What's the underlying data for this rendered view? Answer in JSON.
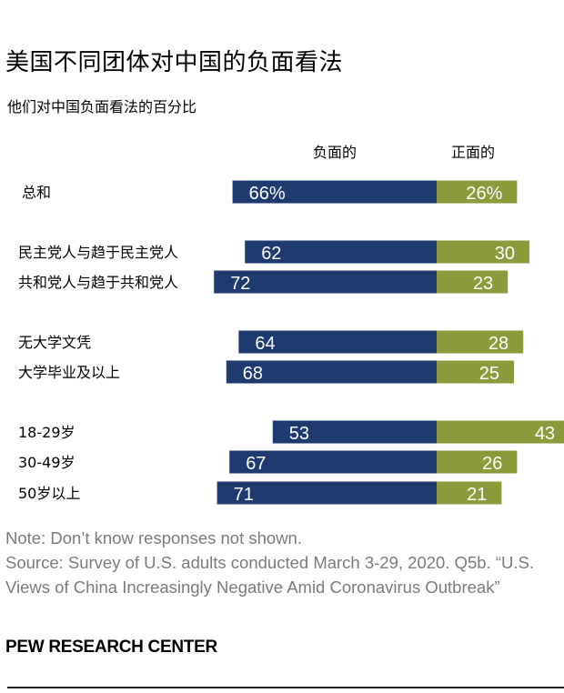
{
  "title": "美国不同团体对中国的负面看法",
  "subtitle": "他们对中国负面看法的百分比",
  "chart_data": {
    "type": "bar",
    "orientation": "horizontal-diverging",
    "series": [
      {
        "name": "负面的",
        "color": "#1f3a6e",
        "values": [
          66,
          62,
          72,
          64,
          68,
          53,
          67,
          71
        ]
      },
      {
        "name": "正面的",
        "color": "#8d9a3b",
        "values": [
          26,
          30,
          23,
          28,
          25,
          43,
          26,
          21
        ]
      }
    ],
    "categories": [
      "总和",
      "民主党人与趋于民主党人",
      "共和党人与趋于共和党人",
      "无大学文凭",
      "大学毕业及以上",
      "18-29岁",
      "30-49岁",
      "50岁以上"
    ],
    "value_labels": {
      "negative": [
        "66%",
        "62",
        "72",
        "64",
        "68",
        "53",
        "67",
        "71"
      ],
      "positive": [
        "26%",
        "30",
        "23",
        "28",
        "25",
        "43",
        "26",
        "21"
      ]
    },
    "title": "美国不同团体对中国的负面看法",
    "xlabel": "",
    "ylabel": ""
  },
  "notes": {
    "note": "Note: Don’t know responses not shown.",
    "source": "Source: Survey of U.S. adults conducted March 3-29, 2020. Q5b. “U.S. Views of China Increasingly Negative Amid Coronavirus Outbreak”"
  },
  "brand": "PEW RESEARCH CENTER"
}
